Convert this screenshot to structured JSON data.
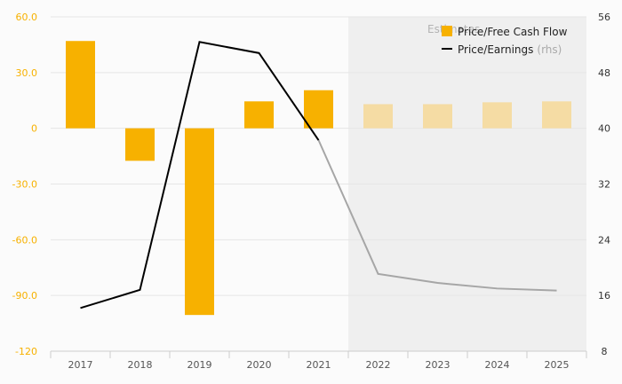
{
  "chart_data": {
    "type": "bar",
    "categories": [
      "2017",
      "2018",
      "2019",
      "2020",
      "2021",
      "2022",
      "2023",
      "2024",
      "2025"
    ],
    "estimate_from_index": 5,
    "estimates_label": "Estimates",
    "series": [
      {
        "name": "Price/Free Cash Flow",
        "type": "bar",
        "axis": "left",
        "values": [
          47,
          -17.5,
          -100.5,
          14.5,
          20.5,
          13,
          13,
          14,
          14.5
        ],
        "color": "#f7b100",
        "estimate_color": "#f5dca4"
      },
      {
        "name": "Price/Earnings",
        "name_suffix": "(rhs)",
        "type": "line",
        "axis": "right",
        "values": [
          14.2,
          16.8,
          52.4,
          50.8,
          38.3,
          19.1,
          17.8,
          17.0,
          16.7
        ],
        "color": "#000000",
        "estimate_color": "#a6a6a6"
      }
    ],
    "y_left": {
      "min": -120,
      "max": 60,
      "ticks": [
        "60.0",
        "30.0",
        "0",
        "-30.0",
        "-60.0",
        "-90.0",
        "-120"
      ],
      "tick_values": [
        60,
        30,
        0,
        -30,
        -60,
        -90,
        -120
      ],
      "color": "#f7b100"
    },
    "y_right": {
      "min": 8,
      "max": 56,
      "ticks": [
        "56",
        "48",
        "40",
        "32",
        "24",
        "16",
        "8"
      ],
      "tick_values": [
        56,
        48,
        40,
        32,
        24,
        16,
        8
      ]
    },
    "grid": true,
    "legend_position": "top-right"
  }
}
